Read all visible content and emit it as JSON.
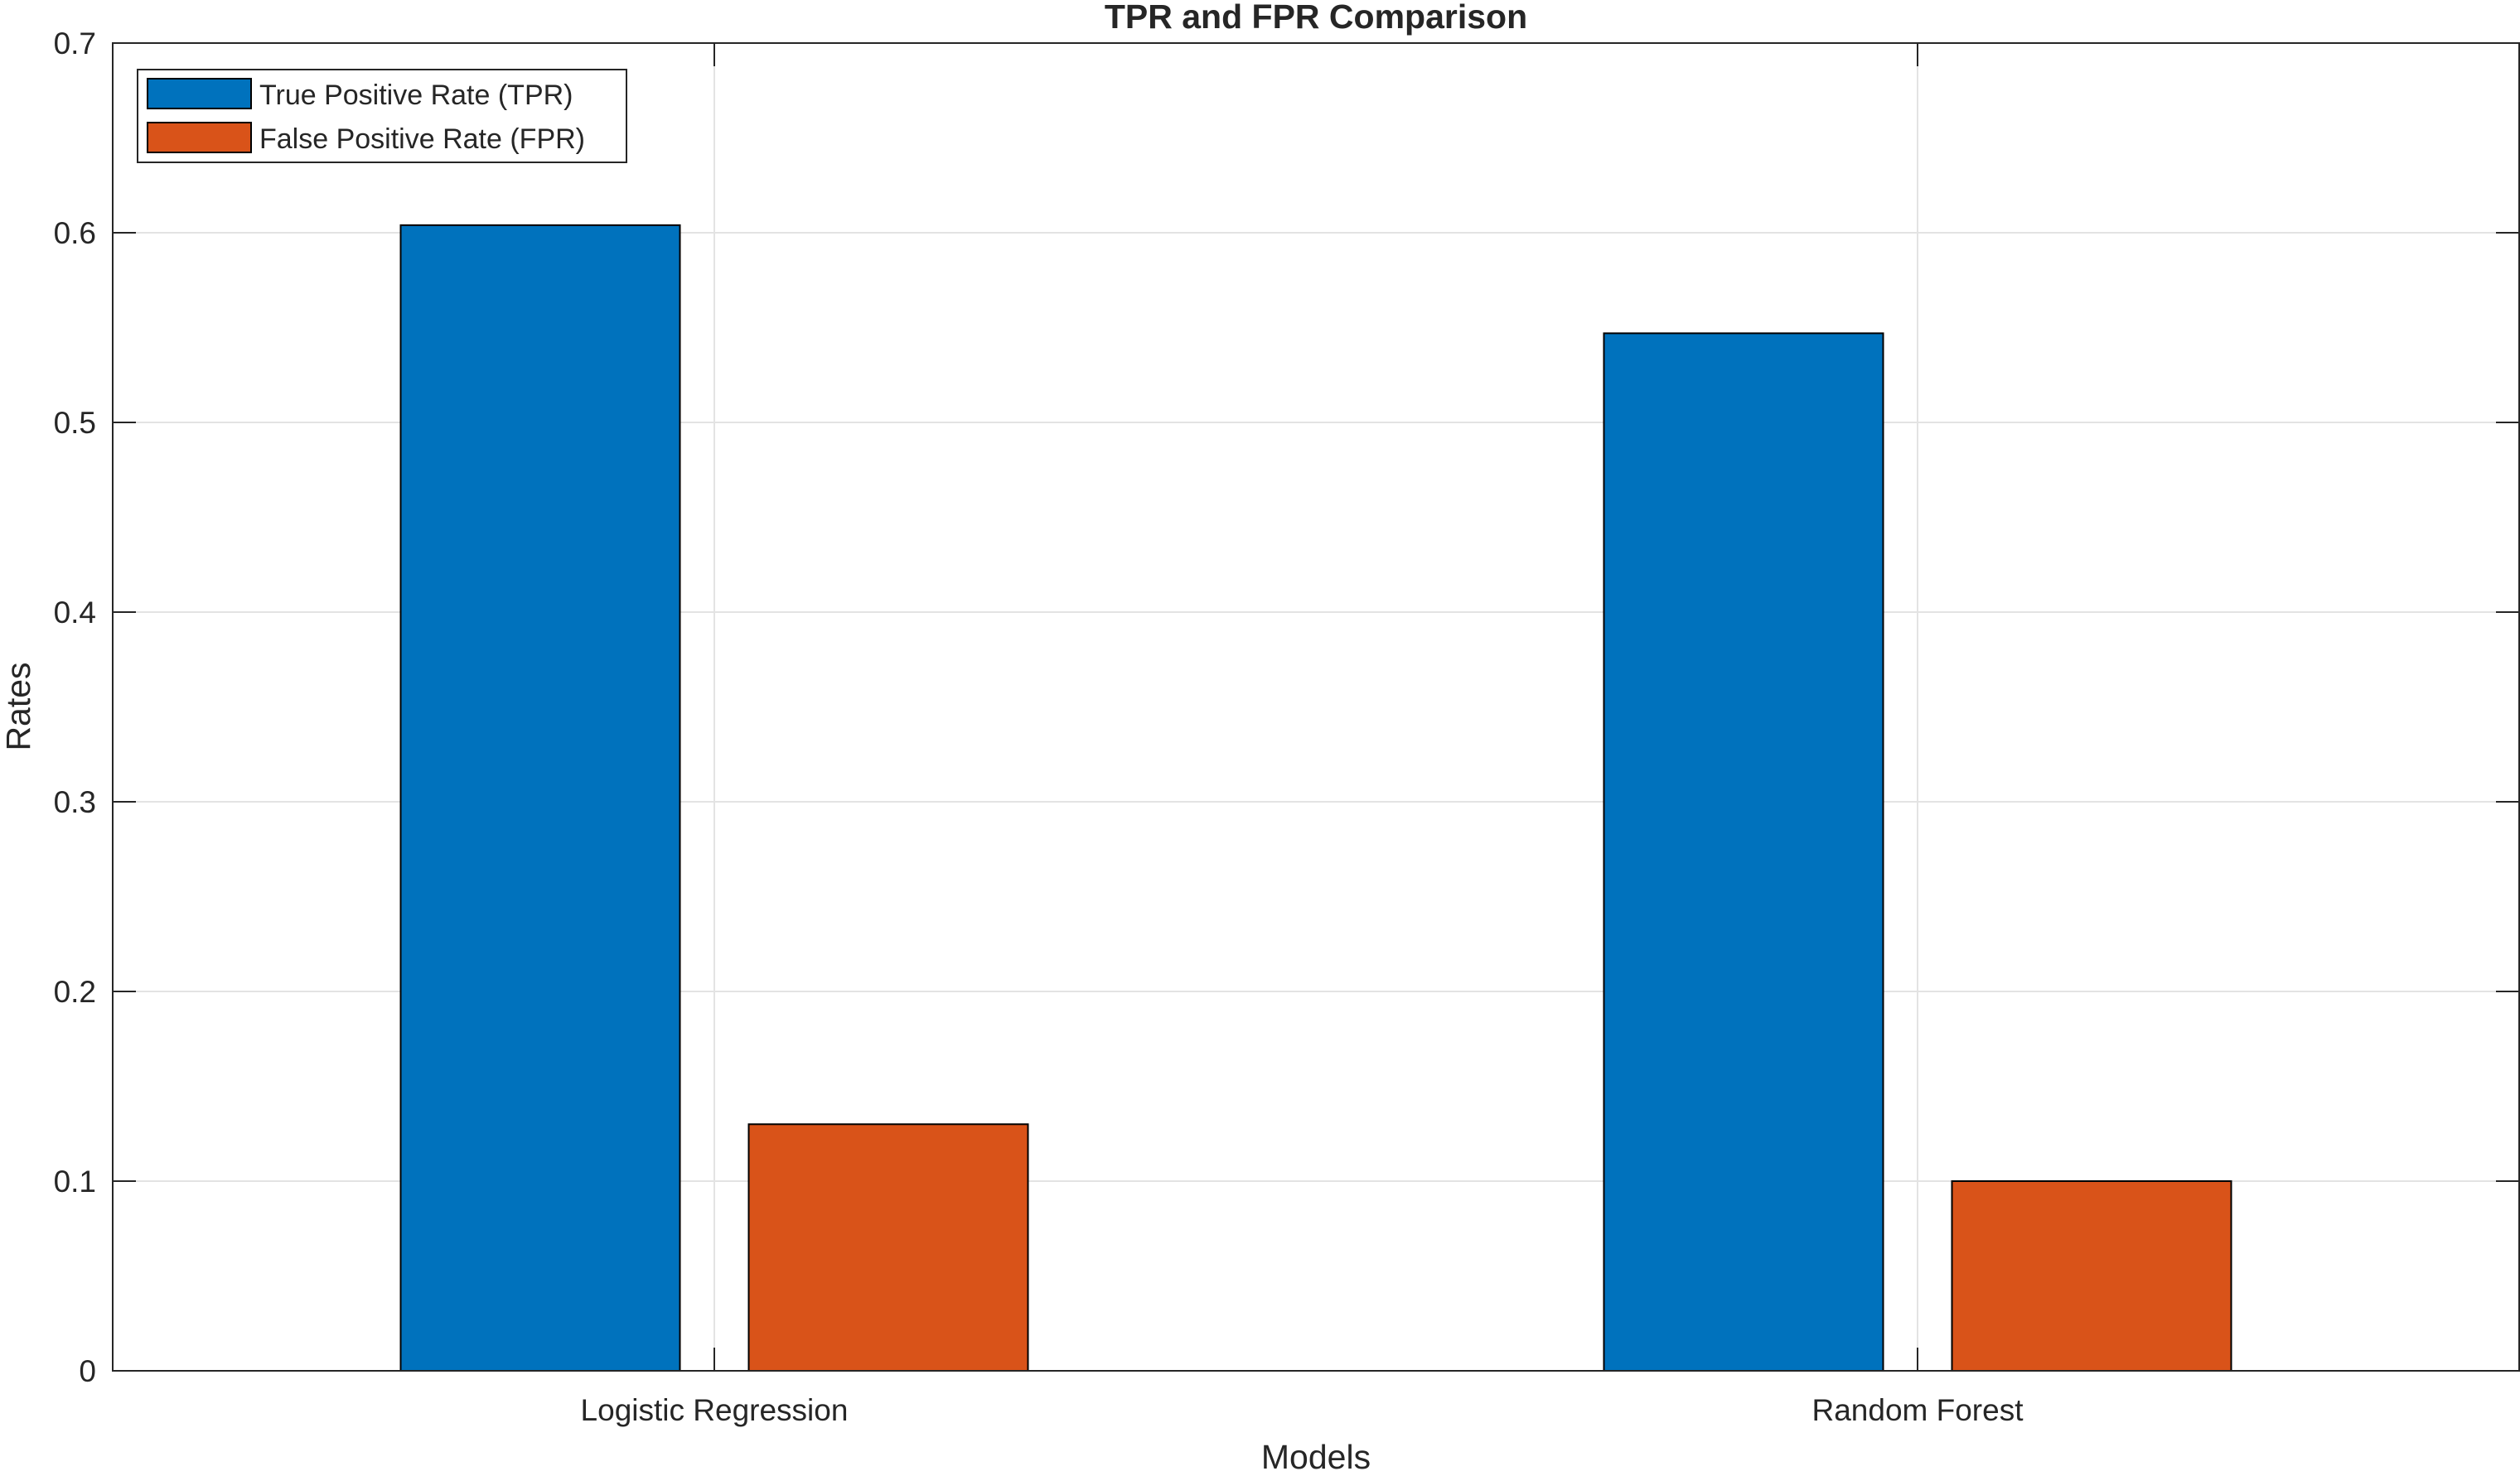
{
  "chart_data": {
    "type": "bar",
    "title": "TPR and FPR Comparison",
    "xlabel": "Models",
    "ylabel": "Rates",
    "categories": [
      "Logistic Regression",
      "Random Forest"
    ],
    "series": [
      {
        "name": "True Positive Rate (TPR)",
        "color": "#0072BD",
        "values": [
          0.604,
          0.547
        ]
      },
      {
        "name": "False Positive Rate (FPR)",
        "color": "#D95319",
        "values": [
          0.13,
          0.1
        ]
      }
    ],
    "ylim": [
      0,
      0.7
    ],
    "yticks": [
      "0",
      "0.1",
      "0.2",
      "0.3",
      "0.4",
      "0.5",
      "0.6",
      "0.7"
    ],
    "grid": true,
    "legend_position": "top-left"
  }
}
